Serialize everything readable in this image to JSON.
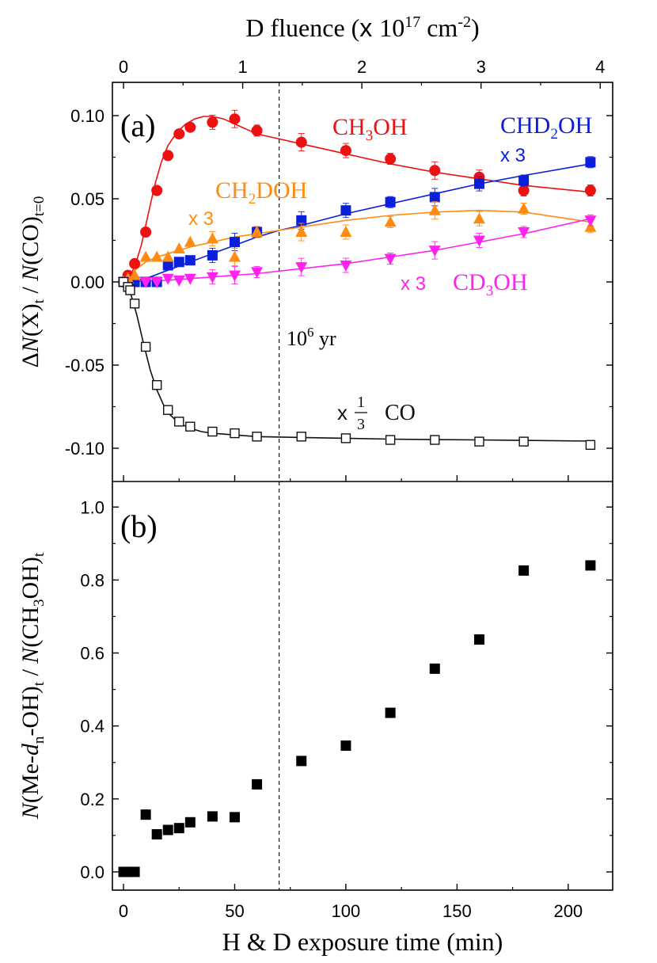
{
  "chart_data": [
    {
      "panel": "(a)",
      "type": "scatter",
      "panel_label": "(a)",
      "top_axis": {
        "label_prefix": "D fluence (",
        "label_times": "x",
        "label_ten": "10",
        "label_exp": "17",
        "label_unit": "cm",
        "label_unit_exp": "-2",
        "label_close": ")",
        "ticks": [
          0,
          1,
          2,
          3,
          4
        ],
        "minutes_per_unit": 53.6
      },
      "ylabel": {
        "delta": "Δ",
        "n1": "N",
        "x": "(X)",
        "sub_t": "t",
        "slash": " / ",
        "n2": "N",
        "co": "(CO)",
        "sub_t0": "t=0"
      },
      "ylim": [
        -0.12,
        0.12
      ],
      "yticks": [
        "0.10",
        "0.05",
        "0.00",
        "-0.05",
        "-0.10"
      ],
      "ytick_values": [
        0.1,
        0.05,
        0.0,
        -0.05,
        -0.1
      ],
      "marker_line": {
        "x": 70,
        "label_base": "10",
        "label_exp": "6",
        "label_unit": "yr"
      },
      "series": [
        {
          "name": "CH3OH",
          "label_main": "CH",
          "label_sub": "3",
          "label_tail": "OH",
          "color": "#ee1111",
          "marker": "circle",
          "x": [
            0,
            2,
            5,
            10,
            15,
            20,
            25,
            30,
            40,
            50,
            60,
            80,
            100,
            120,
            140,
            160,
            180,
            210
          ],
          "y": [
            0.0,
            0.004,
            0.011,
            0.03,
            0.055,
            0.076,
            0.089,
            0.093,
            0.096,
            0.098,
            0.091,
            0.084,
            0.079,
            0.074,
            0.067,
            0.063,
            0.055,
            0.055
          ],
          "fit_x": [
            0,
            2,
            5,
            8,
            11,
            14,
            17,
            20,
            24,
            28,
            32,
            36,
            40,
            45,
            50,
            55,
            60,
            70,
            80,
            100,
            120,
            140,
            160,
            180,
            210
          ],
          "fit_y": [
            0.0,
            0.002,
            0.009,
            0.022,
            0.04,
            0.058,
            0.072,
            0.082,
            0.09,
            0.095,
            0.098,
            0.0995,
            0.0995,
            0.098,
            0.095,
            0.092,
            0.089,
            0.086,
            0.083,
            0.077,
            0.071,
            0.066,
            0.062,
            0.058,
            0.054
          ]
        },
        {
          "name": "CHD2OH",
          "label_main": "CHD",
          "label_sub": "2",
          "label_tail": "OH",
          "multiplier_label": "x 3",
          "color": "#0a1fd9",
          "marker": "square",
          "x": [
            0,
            5,
            10,
            15,
            20,
            25,
            30,
            40,
            50,
            60,
            80,
            100,
            120,
            140,
            160,
            180,
            210
          ],
          "y": [
            0.0,
            0.0,
            0.0,
            0.0,
            0.01,
            0.012,
            0.013,
            0.016,
            0.024,
            0.03,
            0.037,
            0.043,
            0.048,
            0.051,
            0.059,
            0.061,
            0.072
          ],
          "fit_x": [
            0,
            10,
            20,
            30,
            40,
            50,
            60,
            70,
            80,
            100,
            120,
            140,
            160,
            180,
            210
          ],
          "fit_y": [
            0.0,
            0.002,
            0.007,
            0.012,
            0.017,
            0.022,
            0.027,
            0.031,
            0.034,
            0.041,
            0.047,
            0.053,
            0.059,
            0.064,
            0.071
          ]
        },
        {
          "name": "CH2DOH",
          "label_main": "CH",
          "label_sub": "2",
          "label_tail": "DOH",
          "multiplier_label": "x 3",
          "color": "#ff8c11",
          "marker": "triangle-up",
          "x": [
            0,
            2,
            5,
            10,
            15,
            20,
            25,
            30,
            40,
            50,
            60,
            80,
            100,
            120,
            140,
            160,
            180,
            210
          ],
          "y": [
            0.0,
            0.002,
            0.004,
            0.015,
            0.015,
            0.015,
            0.02,
            0.024,
            0.026,
            0.015,
            0.03,
            0.03,
            0.03,
            0.036,
            0.043,
            0.038,
            0.044,
            0.033
          ],
          "fit_x": [
            0,
            3,
            6,
            10,
            15,
            20,
            30,
            40,
            50,
            60,
            80,
            100,
            120,
            140,
            160,
            180,
            210
          ],
          "fit_y": [
            0.0,
            0.004,
            0.008,
            0.012,
            0.015,
            0.017,
            0.021,
            0.024,
            0.027,
            0.029,
            0.033,
            0.037,
            0.04,
            0.042,
            0.043,
            0.042,
            0.036
          ]
        },
        {
          "name": "CD3OH",
          "label_main": "CD",
          "label_sub": "3",
          "label_tail": "OH",
          "multiplier_label": "x 3",
          "color": "#ff22ee",
          "marker": "triangle-down",
          "x": [
            0,
            10,
            15,
            20,
            25,
            30,
            40,
            50,
            60,
            80,
            100,
            120,
            140,
            160,
            180,
            210
          ],
          "y": [
            0.0,
            0.0,
            0.0,
            0.002,
            0.001,
            0.002,
            0.003,
            0.004,
            0.006,
            0.009,
            0.01,
            0.014,
            0.019,
            0.025,
            0.03,
            0.037
          ],
          "fit_x": [
            0,
            20,
            40,
            60,
            80,
            100,
            120,
            140,
            160,
            180,
            210
          ],
          "fit_y": [
            0.0,
            0.001,
            0.003,
            0.005,
            0.008,
            0.011,
            0.015,
            0.019,
            0.024,
            0.029,
            0.038
          ]
        },
        {
          "name": "CO",
          "label_main": "CO",
          "multiplier_label": "x",
          "fraction_num": "1",
          "fraction_den": "3",
          "color": "#111111",
          "marker": "square-open",
          "x": [
            0,
            2,
            3,
            5,
            10,
            15,
            20,
            25,
            30,
            40,
            50,
            60,
            80,
            100,
            120,
            140,
            160,
            180,
            210
          ],
          "y": [
            0.0,
            -0.003,
            -0.005,
            -0.013,
            -0.039,
            -0.062,
            -0.077,
            -0.084,
            -0.087,
            -0.09,
            -0.091,
            -0.093,
            -0.093,
            -0.094,
            -0.095,
            -0.095,
            -0.096,
            -0.096,
            -0.098
          ],
          "fit_x": [
            0,
            3,
            6,
            9,
            12,
            15,
            18,
            21,
            25,
            30,
            35,
            40,
            50,
            60,
            80,
            100,
            120,
            140,
            160,
            180,
            210
          ],
          "fit_y": [
            0.0,
            -0.006,
            -0.02,
            -0.037,
            -0.053,
            -0.065,
            -0.074,
            -0.08,
            -0.085,
            -0.088,
            -0.09,
            -0.091,
            -0.092,
            -0.093,
            -0.0935,
            -0.094,
            -0.0945,
            -0.0948,
            -0.095,
            -0.0953,
            -0.0957
          ]
        }
      ]
    },
    {
      "panel": "(b)",
      "type": "scatter",
      "panel_label": "(b)",
      "xlabel": "H & D exposure time (min)",
      "xlim": [
        -5,
        220
      ],
      "xticks": [
        0,
        50,
        100,
        150,
        200
      ],
      "ylabel": {
        "n1": "N",
        "me": "(Me-",
        "d": "d",
        "sub_n": "n",
        "oh": "-OH)",
        "sub_t": "t",
        "slash": " / ",
        "n2": "N",
        "ch": "(CH",
        "sub_3": "3",
        "ohc": "OH)",
        "sub_t2": "t"
      },
      "ylim": [
        -0.05,
        1.07
      ],
      "yticks": [
        "0.0",
        "0.2",
        "0.4",
        "0.6",
        "0.8",
        "1.0"
      ],
      "ytick_values": [
        0.0,
        0.2,
        0.4,
        0.6,
        0.8,
        1.0
      ],
      "series": [
        {
          "name": "Me-dn-OH / CH3OH",
          "color": "#000000",
          "marker": "square",
          "x": [
            0,
            2,
            5,
            10,
            15,
            20,
            25,
            30,
            40,
            50,
            60,
            80,
            100,
            120,
            140,
            160,
            180,
            210
          ],
          "y": [
            0.0,
            0.0,
            0.0,
            0.157,
            0.103,
            0.115,
            0.12,
            0.136,
            0.152,
            0.15,
            0.24,
            0.304,
            0.346,
            0.436,
            0.557,
            0.637,
            0.826,
            0.84
          ]
        }
      ]
    }
  ]
}
